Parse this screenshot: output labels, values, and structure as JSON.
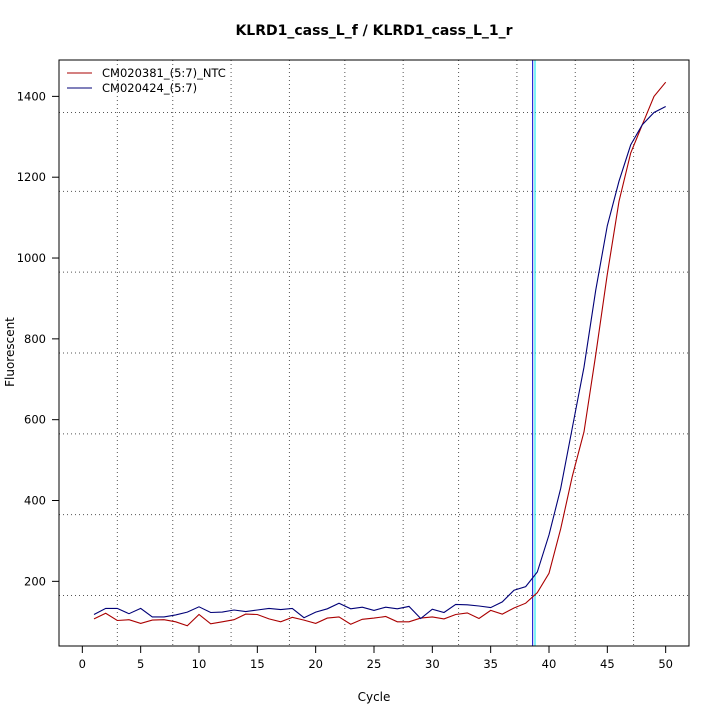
{
  "chart_data": {
    "type": "line",
    "title": "KLRD1_cass_L_f / KLRD1_cass_L_1_r",
    "xlabel": "Cycle",
    "ylabel": "Fluorescent",
    "xlim": [
      -2,
      52
    ],
    "ylim": [
      40,
      1490
    ],
    "xticks": [
      0,
      5,
      10,
      15,
      20,
      25,
      30,
      35,
      40,
      45,
      50
    ],
    "yticks": [
      200,
      400,
      600,
      800,
      1000,
      1200,
      1400
    ],
    "grid": "dotted",
    "grid_x": [
      3,
      7.75,
      12.75,
      17.75,
      22.5,
      27.5,
      32.25,
      37.25,
      42.25,
      47.25
    ],
    "grid_y": [
      165,
      365,
      565,
      765,
      965,
      1165,
      1360
    ],
    "legend_position": "top-left",
    "threshold_lines": [
      {
        "x": 38.6,
        "color": "#0000cc"
      },
      {
        "x": 38.8,
        "color": "#00e5ee"
      }
    ],
    "x": [
      1,
      2,
      3,
      4,
      5,
      6,
      7,
      8,
      9,
      10,
      11,
      12,
      13,
      14,
      15,
      16,
      17,
      18,
      19,
      20,
      21,
      22,
      23,
      24,
      25,
      26,
      27,
      28,
      29,
      30,
      31,
      32,
      33,
      34,
      35,
      36,
      37,
      38,
      39,
      40,
      41,
      42,
      43,
      44,
      45,
      46,
      47,
      48,
      49,
      50
    ],
    "series": [
      {
        "name": "CM020381_(5:7)_NTC",
        "color": "#aa0000",
        "values": [
          107,
          121,
          103,
          105,
          96,
          104,
          105,
          100,
          90,
          118,
          95,
          100,
          105,
          119,
          118,
          107,
          100,
          111,
          104,
          96,
          109,
          112,
          94,
          106,
          109,
          113,
          100,
          100,
          109,
          112,
          107,
          118,
          122,
          108,
          128,
          119,
          134,
          146,
          172,
          220,
          330,
          460,
          570,
          760,
          960,
          1140,
          1260,
          1330,
          1400,
          1435
        ]
      },
      {
        "name": "CM020424_(5:7)",
        "color": "#000077",
        "values": [
          118,
          133,
          133,
          120,
          133,
          112,
          112,
          117,
          124,
          137,
          123,
          124,
          129,
          125,
          129,
          133,
          130,
          133,
          110,
          124,
          132,
          146,
          132,
          136,
          128,
          136,
          132,
          138,
          108,
          131,
          123,
          143,
          142,
          139,
          135,
          149,
          178,
          187,
          223,
          315,
          430,
          580,
          730,
          920,
          1080,
          1190,
          1280,
          1330,
          1360,
          1375
        ]
      }
    ]
  }
}
